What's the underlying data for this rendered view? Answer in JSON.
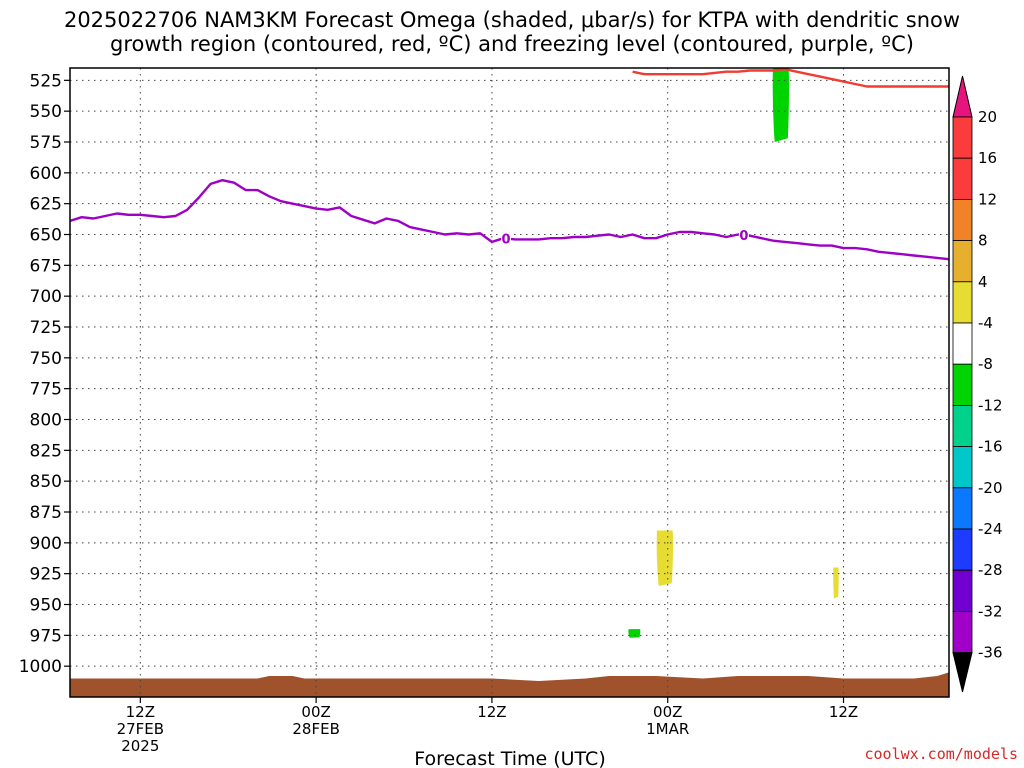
{
  "chart_data": {
    "type": "heatmap",
    "title_line1": "2025022706 NAM3KM Forecast Omega (shaded, μbar/s) for KTPA with dendritic snow",
    "title_line2": "growth region (contoured, red, ºC) and freezing level (contoured, purple, ºC)",
    "xlabel": "Forecast Time (UTC)",
    "credit": "coolwx.com/models",
    "x_range_hours": [
      6,
      81
    ],
    "y_range_hpa": [
      1025,
      515
    ],
    "y_ticks": [
      525,
      550,
      575,
      600,
      625,
      650,
      675,
      700,
      725,
      750,
      775,
      800,
      825,
      850,
      875,
      900,
      925,
      950,
      975,
      1000
    ],
    "x_ticks": [
      {
        "hour": 12,
        "line1": "12Z",
        "line2": "27FEB",
        "line3": "2025"
      },
      {
        "hour": 27,
        "line1": "00Z",
        "line2": "28FEB",
        "line3": ""
      },
      {
        "hour": 42,
        "line1": "12Z",
        "line2": "",
        "line3": ""
      },
      {
        "hour": 57,
        "line1": "00Z",
        "line2": "1MAR",
        "line3": ""
      },
      {
        "hour": 72,
        "line1": "12Z",
        "line2": "",
        "line3": ""
      }
    ],
    "grid": true,
    "colorbar": {
      "colors": [
        "#9e9e9e",
        "#a000c8",
        "#7000d0",
        "#1e3cff",
        "#0a78ff",
        "#00c8c8",
        "#00d28c",
        "#00d400",
        "#ffffff",
        "#e6dc32",
        "#e6af2d",
        "#f08228",
        "#fa3c3c",
        "#e6147d"
      ],
      "labels": [
        "-36",
        "-32",
        "-28",
        "-24",
        "-20",
        "-16",
        "-12",
        "-8",
        "-4",
        "4",
        "8",
        "12",
        "16",
        "20"
      ],
      "under_color": "#000000",
      "over_color": "#e6147d"
    },
    "series": [
      {
        "kind": "freezing-level",
        "label": "0",
        "color": "#9f00c5",
        "x": [
          6,
          7,
          8,
          9,
          10,
          11,
          12,
          13,
          14,
          15,
          16,
          17,
          18,
          19,
          20,
          21,
          22,
          23,
          24,
          25,
          26,
          27,
          28,
          29,
          30,
          31,
          32,
          33,
          34,
          35,
          36,
          37,
          38,
          39,
          40,
          41,
          42,
          43,
          44,
          45,
          46,
          47,
          48,
          49,
          50,
          51,
          52,
          53,
          54,
          55,
          56,
          57,
          58,
          59,
          60,
          61,
          62,
          63,
          64,
          65,
          66,
          67,
          68,
          69,
          70,
          71,
          72,
          73,
          74,
          75,
          76,
          77,
          78,
          79,
          80,
          81
        ],
        "y": [
          639,
          636,
          637,
          635,
          633,
          634,
          634,
          635,
          636,
          635,
          630,
          620,
          609,
          606,
          608,
          614,
          614,
          619,
          623,
          625,
          627,
          629,
          630,
          628,
          635,
          638,
          641,
          637,
          639,
          644,
          646,
          648,
          650,
          649,
          650,
          649,
          656,
          653,
          654,
          654,
          654,
          653,
          653,
          652,
          652,
          651,
          650,
          652,
          650,
          653,
          653,
          650,
          648,
          648,
          649,
          650,
          652,
          650,
          651,
          653,
          655,
          656,
          657,
          658,
          659,
          659,
          661,
          661,
          662,
          664,
          665,
          666,
          667,
          668,
          669,
          670
        ],
        "labels_at_hours": [
          43.2,
          63.5
        ]
      },
      {
        "kind": "dgz-top-boundary",
        "color": "#f03c32",
        "x": [
          54,
          55,
          56,
          57,
          58,
          59,
          60,
          61,
          62,
          63,
          64,
          65,
          66,
          67,
          68,
          69,
          70,
          71,
          72,
          73,
          74,
          75,
          76,
          77,
          78,
          79,
          80,
          81
        ],
        "y": [
          518,
          520,
          520,
          520,
          520,
          520,
          520,
          519,
          518,
          518,
          517,
          517,
          517,
          516,
          518,
          520,
          522,
          524,
          526,
          528,
          530,
          530,
          530,
          530,
          530,
          530,
          530,
          530
        ]
      }
    ],
    "shaded_regions": [
      {
        "value_range": [
          -8,
          -4
        ],
        "color": "#00d400",
        "hours": [
          65.9,
          67.4
        ],
        "pressure_hpa": [
          515,
          575
        ]
      },
      {
        "value_range": [
          4,
          8
        ],
        "color": "#e6dc32",
        "hours": [
          56.0,
          57.5
        ],
        "pressure_hpa": [
          890,
          935
        ]
      },
      {
        "value_range": [
          4,
          8
        ],
        "color": "#e6dc32",
        "hours": [
          71.1,
          71.6
        ],
        "pressure_hpa": [
          920,
          945
        ]
      },
      {
        "value_range": [
          -8,
          -4
        ],
        "color": "#00d400",
        "hours": [
          53.6,
          54.7
        ],
        "pressure_hpa": [
          970,
          977
        ]
      }
    ],
    "terrain": {
      "color": "#a0522d",
      "x": [
        6,
        16,
        22,
        23,
        25,
        26,
        38,
        42,
        46,
        50,
        52,
        56,
        60,
        63,
        69,
        72,
        75,
        78,
        80,
        81
      ],
      "y": [
        1010,
        1010,
        1010,
        1008,
        1008,
        1010,
        1010,
        1010,
        1012,
        1010,
        1008,
        1008,
        1010,
        1008,
        1008,
        1010,
        1010,
        1010,
        1008,
        1005
      ],
      "bottom": 1025
    }
  }
}
